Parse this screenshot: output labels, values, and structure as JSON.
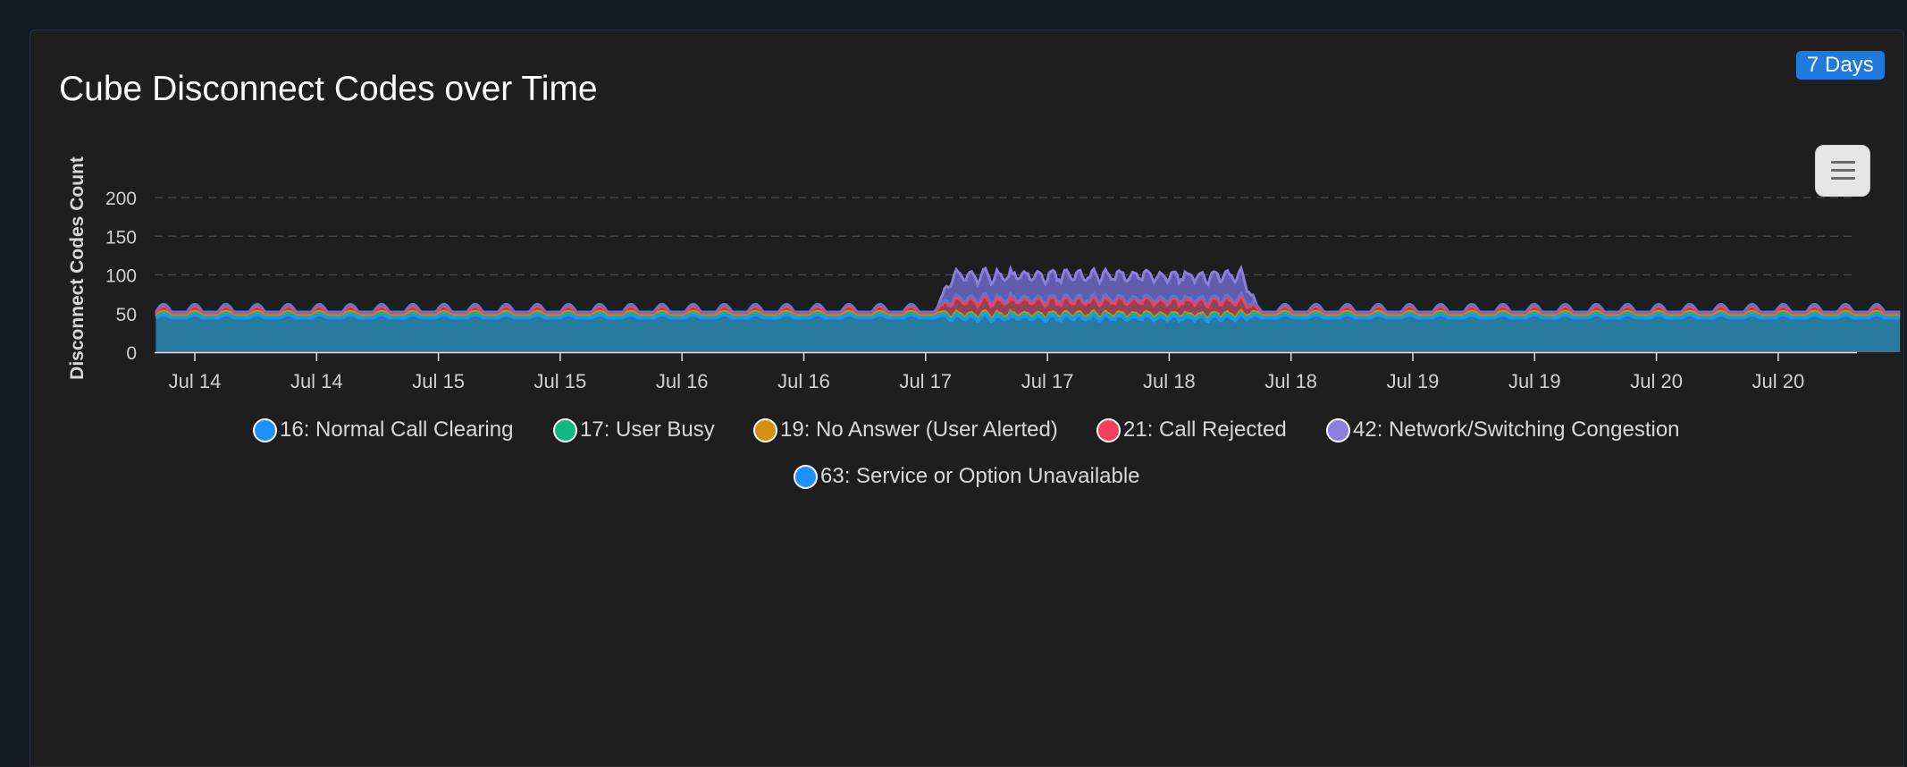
{
  "header": {
    "title": "Cube Disconnect Codes over Time",
    "range_badge": "7 Days"
  },
  "menu": {
    "icon": "hamburger-icon"
  },
  "colors": {
    "background": "#1e1e1e",
    "grid": "#4a4a4a",
    "axis_text": "#d0d0d0"
  },
  "chart_data": {
    "type": "area",
    "stacked": true,
    "title": "Cube Disconnect Codes over Time",
    "xlabel": "",
    "ylabel": "Disconnect Codes Count",
    "ylim": [
      0,
      200
    ],
    "yticks": [
      0,
      50,
      100,
      150,
      200
    ],
    "grid": "horizontal dashed",
    "legend_position": "bottom",
    "xtick_labels": [
      "Jul 14",
      "Jul 14",
      "Jul 15",
      "Jul 15",
      "Jul 16",
      "Jul 16",
      "Jul 17",
      "Jul 17",
      "Jul 18",
      "Jul 18",
      "Jul 19",
      "Jul 19",
      "Jul 20",
      "Jul 20"
    ],
    "x_range_ticks": [
      -0.32,
      14.0
    ],
    "cycles": 56,
    "congestion_window_ticks": [
      6.1,
      8.72
    ],
    "series": [
      {
        "name": "16: Normal Call Clearing",
        "color": "#1e90ff",
        "fill": "#2a8bb5",
        "baseline": 44,
        "peak": 4,
        "elevated": 46
      },
      {
        "name": "17: User Busy",
        "color": "#10b981",
        "fill": "#1f9e86",
        "baseline": 2,
        "peak": 1,
        "elevated": 3
      },
      {
        "name": "19: No Answer (User Alerted)",
        "color": "#d4900f",
        "fill": "#8a7a4a",
        "baseline": 1,
        "peak": 1,
        "elevated": 2
      },
      {
        "name": "21: Call Rejected",
        "color": "#f43f5e",
        "fill": "#a94a62",
        "baseline": 3,
        "peak": 3,
        "elevated": 18
      },
      {
        "name": "42: Network/Switching Congestion",
        "color": "#8b7fe0",
        "fill": "#6f67c4",
        "baseline": 0,
        "peak": 0,
        "elevated": 31
      },
      {
        "name": "63: Service or Option Unavailable",
        "color": "#1e90ff",
        "fill": "#2f7fd8",
        "baseline": 2,
        "peak": 1,
        "elevated": 3
      }
    ]
  }
}
